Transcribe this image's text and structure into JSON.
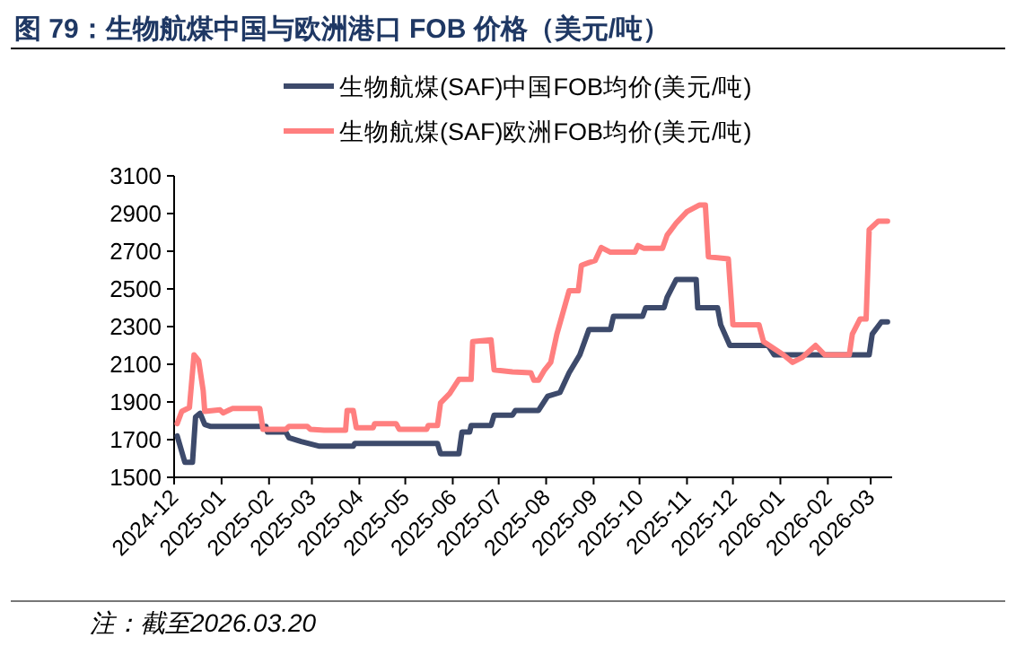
{
  "chart_data": {
    "type": "line",
    "title": "图 79：生物航煤中国与欧洲港口 FOB 价格（美元/吨）",
    "annotations": [
      "注：截至2026.03.20"
    ],
    "xlim": [
      "2024-12-01",
      "2026-03-15"
    ],
    "xticks": [
      "2024-12",
      "2025-01",
      "2025-02",
      "2025-03",
      "2025-04",
      "2025-05",
      "2025-06",
      "2025-07",
      "2025-08",
      "2025-09",
      "2025-10",
      "2025-11",
      "2025-12",
      "2026-01",
      "2026-02",
      "2026-03"
    ],
    "ylim": [
      1500,
      3100
    ],
    "yticks": [
      1500,
      1700,
      1900,
      2100,
      2300,
      2500,
      2700,
      2900,
      3100
    ],
    "grid": false,
    "legend": "top",
    "marker": "none",
    "line_style": "solid",
    "series": [
      {
        "name": "生物航煤(SAF)中国FOB均价(美元/吨)",
        "color": "#3d4a6b",
        "x": [
          "2024-12-03",
          "2024-12-08",
          "2024-12-13",
          "2024-12-15",
          "2024-12-18",
          "2024-12-21",
          "2024-12-25",
          "2025-01-30",
          "2025-01-31",
          "2025-02-12",
          "2025-02-14",
          "2025-02-22",
          "2025-03-06",
          "2025-03-28",
          "2025-03-29",
          "2025-05-22",
          "2025-05-24",
          "2025-06-05",
          "2025-06-07",
          "2025-06-12",
          "2025-06-13",
          "2025-06-26",
          "2025-06-28",
          "2025-07-10",
          "2025-07-12",
          "2025-07-27",
          "2025-08-02",
          "2025-08-10",
          "2025-08-16",
          "2025-08-23",
          "2025-08-29",
          "2025-09-12",
          "2025-09-14",
          "2025-10-03",
          "2025-10-05",
          "2025-10-17",
          "2025-10-19",
          "2025-10-25",
          "2025-11-07",
          "2025-11-08",
          "2025-11-21",
          "2025-11-23",
          "2025-11-29",
          "2025-12-24",
          "2025-12-28",
          "2026-02-28",
          "2026-03-02",
          "2026-03-08",
          "2026-03-12"
        ],
        "values": [
          1720,
          1580,
          1580,
          1820,
          1840,
          1780,
          1770,
          1770,
          1740,
          1740,
          1710,
          1690,
          1665,
          1665,
          1680,
          1680,
          1625,
          1625,
          1740,
          1740,
          1775,
          1775,
          1830,
          1830,
          1855,
          1855,
          1930,
          1950,
          2055,
          2150,
          2285,
          2285,
          2355,
          2355,
          2400,
          2400,
          2455,
          2550,
          2550,
          2400,
          2400,
          2310,
          2200,
          2200,
          2150,
          2150,
          2260,
          2325,
          2325
        ]
      },
      {
        "name": "生物航煤(SAF)欧洲FOB均价(美元/吨)",
        "color": "#ff7f7f",
        "x": [
          "2024-12-03",
          "2024-12-06",
          "2024-12-11",
          "2024-12-14",
          "2024-12-17",
          "2024-12-20",
          "2024-12-21",
          "2024-12-31",
          "2025-01-02",
          "2025-01-08",
          "2025-01-26",
          "2025-01-28",
          "2025-02-12",
          "2025-02-14",
          "2025-02-26",
          "2025-02-28",
          "2025-03-09",
          "2025-03-23",
          "2025-03-24",
          "2025-03-28",
          "2025-03-30",
          "2025-04-10",
          "2025-04-11",
          "2025-04-25",
          "2025-04-27",
          "2025-05-15",
          "2025-05-16",
          "2025-05-22",
          "2025-05-24",
          "2025-05-30",
          "2025-06-05",
          "2025-06-13",
          "2025-06-14",
          "2025-06-26",
          "2025-06-28",
          "2025-07-10",
          "2025-07-22",
          "2025-07-24",
          "2025-07-27",
          "2025-07-31",
          "2025-08-04",
          "2025-08-08",
          "2025-08-16",
          "2025-08-22",
          "2025-08-24",
          "2025-08-29",
          "2025-09-02",
          "2025-09-06",
          "2025-09-12",
          "2025-09-28",
          "2025-09-30",
          "2025-10-04",
          "2025-10-16",
          "2025-10-19",
          "2025-10-25",
          "2025-11-01",
          "2025-11-09",
          "2025-11-13",
          "2025-11-15",
          "2025-11-28",
          "2025-12-01",
          "2025-12-18",
          "2025-12-21",
          "2026-01-03",
          "2026-01-09",
          "2026-01-15",
          "2026-01-24",
          "2026-01-30",
          "2026-02-15",
          "2026-02-17",
          "2026-02-22",
          "2026-02-26",
          "2026-02-28",
          "2026-03-06",
          "2026-03-12"
        ],
        "values": [
          1785,
          1850,
          1870,
          2150,
          2120,
          1960,
          1850,
          1858,
          1842,
          1865,
          1865,
          1755,
          1755,
          1770,
          1770,
          1755,
          1750,
          1750,
          1855,
          1855,
          1763,
          1763,
          1785,
          1785,
          1755,
          1755,
          1775,
          1775,
          1895,
          1945,
          2020,
          2020,
          2220,
          2230,
          2070,
          2060,
          2055,
          2015,
          2015,
          2070,
          2110,
          2260,
          2490,
          2490,
          2625,
          2640,
          2650,
          2720,
          2695,
          2695,
          2730,
          2715,
          2715,
          2785,
          2850,
          2910,
          2945,
          2945,
          2670,
          2660,
          2310,
          2310,
          2220,
          2150,
          2110,
          2135,
          2200,
          2150,
          2150,
          2260,
          2340,
          2340,
          2815,
          2860,
          2860
        ]
      }
    ]
  }
}
